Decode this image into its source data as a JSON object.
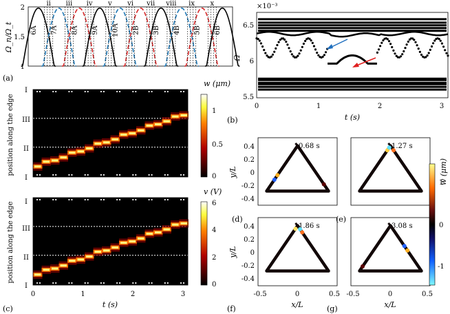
{
  "figure": {
    "panels": {
      "a": {
        "label": "(a)",
        "ylabel": "Ω_n/Ω_t"
      },
      "b": {
        "label": "(b)",
        "ylabel": "Ω",
        "xlabel": "t (s)",
        "exponent": "×10⁻³"
      },
      "c": {
        "label": "(c)",
        "xlabel": "t (s)"
      },
      "d": {
        "label": "(d)",
        "time": "0.68 s"
      },
      "e": {
        "label": "(e)",
        "time": "1.27 s"
      },
      "f": {
        "label": "(f)",
        "time": "1.86 s"
      },
      "g": {
        "label": "(g)",
        "time": "3.08 s"
      }
    },
    "heatmap_top": {
      "ylabel": "position along the edge",
      "cbar_label": "w (μm)",
      "cbar_ticks": [
        "1",
        "0.5",
        "0"
      ]
    },
    "heatmap_bottom": {
      "ylabel": "position along the edge",
      "cbar_label": "v (V)",
      "cbar_ticks": [
        "6",
        "4",
        "2",
        "0"
      ]
    },
    "triangle": {
      "xlabel": "x/L",
      "ylabel": "y/L",
      "cbar_label": "w (μm)",
      "cbar_ticks": [
        "1",
        "0",
        "-1"
      ]
    },
    "colors": {
      "black": "#000000",
      "blue": "#1f77b4",
      "red": "#d62728",
      "arrow_blue": "#1f6fbf",
      "arrow_red": "#e02020"
    }
  },
  "chart_data": [
    {
      "id": "a",
      "type": "line",
      "title": "",
      "xlabel": "",
      "ylabel": "Ω_n/Ω_t",
      "ylim": [
        1,
        2
      ],
      "yticks": [
        "1",
        "1.5",
        "2"
      ],
      "regions": [
        "ii",
        "iii",
        "iv",
        "v",
        "vi",
        "vii",
        "viii",
        "ix",
        "x"
      ],
      "mode_labels": [
        {
          "text": "6A",
          "color": "black"
        },
        {
          "text": "7A",
          "color": "blue"
        },
        {
          "text": "8A",
          "color": "red"
        },
        {
          "text": "9A",
          "color": "black"
        },
        {
          "text": "10A",
          "color": "blue"
        },
        {
          "text": "2B",
          "color": "red"
        },
        {
          "text": "3B",
          "color": "black"
        },
        {
          "text": "4B",
          "color": "blue"
        },
        {
          "text": "5B",
          "color": "red"
        },
        {
          "text": "6B",
          "color": "black"
        }
      ]
    },
    {
      "id": "b",
      "type": "scatter",
      "title": "",
      "xlabel": "t (s)",
      "ylabel": "Ω",
      "xlim": [
        0,
        3.1
      ],
      "ylim": [
        5.5,
        6.75
      ],
      "xticks": [
        "0",
        "1",
        "2",
        "3"
      ],
      "yticks": [
        "5.5",
        "6",
        "6.5"
      ],
      "scale": "×10⁻³",
      "series": [
        {
          "name": "upper band",
          "levels": [
            6.48,
            6.52,
            6.56,
            6.6,
            6.65
          ]
        },
        {
          "name": "oscillating mode",
          "center": 6.23,
          "amplitude": 0.14
        },
        {
          "name": "localized mode",
          "values": [
            6.0,
            6.0,
            6.12,
            6.0,
            6.0
          ]
        },
        {
          "name": "lower band",
          "levels": [
            5.62,
            5.66,
            5.7,
            5.72,
            5.76,
            5.78
          ]
        }
      ]
    },
    {
      "id": "c-top",
      "type": "heatmap",
      "xlabel": "",
      "ylabel": "position along the edge",
      "xlim": [
        0,
        3.1
      ],
      "yticks": [
        "I",
        "II",
        "III",
        "I"
      ],
      "colorbar": {
        "label": "w (μm)",
        "range": [
          0,
          1.3
        ],
        "ticks": [
          "0",
          "0.5",
          "1"
        ]
      }
    },
    {
      "id": "c-bottom",
      "type": "heatmap",
      "xlabel": "t (s)",
      "ylabel": "position along the edge",
      "xlim": [
        0,
        3.1
      ],
      "xticks": [
        "0",
        "1",
        "2",
        "3"
      ],
      "yticks": [
        "I",
        "II",
        "III",
        "I"
      ],
      "colorbar": {
        "label": "v (V)",
        "range": [
          0,
          6.2
        ],
        "ticks": [
          "0",
          "2",
          "4",
          "6"
        ]
      }
    },
    {
      "id": "d-g",
      "type": "scatter",
      "xlabel": "x/L",
      "ylabel": "y/L",
      "xlim": [
        -0.5,
        0.5
      ],
      "ylim": [
        -0.4,
        0.6
      ],
      "xticks": [
        "-0.5",
        "0",
        "0.5"
      ],
      "yticks": [
        "-0.4",
        "-0.2",
        "0",
        "0.2",
        "0.4"
      ],
      "colorbar": {
        "label": "w (μm)",
        "range": [
          -1.5,
          1.5
        ],
        "ticks": [
          "-1",
          "0",
          "1"
        ]
      }
    }
  ]
}
